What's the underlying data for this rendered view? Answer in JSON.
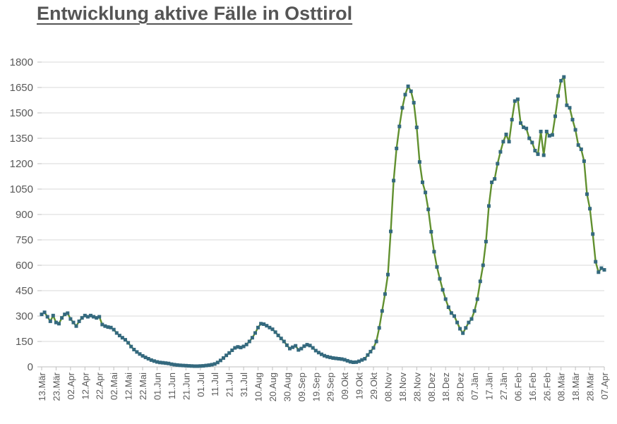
{
  "title": "Entwicklung aktive Fälle in Osttirol",
  "colors": {
    "line": "#61902f",
    "marker": "#34697e",
    "grid": "#d9d9d9",
    "axis": "#bfbfbf",
    "text": "#595959",
    "title_text": "#555555",
    "background": "#ffffff"
  },
  "chart_data": {
    "type": "line",
    "title": "Entwicklung aktive Fälle in Osttirol",
    "legend": "none",
    "grid": "horizontal",
    "marker": "square",
    "ylim": [
      0,
      1800
    ],
    "y_ticks": [
      0,
      150,
      300,
      450,
      600,
      750,
      900,
      1050,
      1200,
      1350,
      1500,
      1650,
      1800
    ],
    "x_tick_labels": [
      "13.Mär",
      "23.Mär",
      "02.Apr",
      "12.Apr",
      "22.Apr",
      "02.Mai",
      "12.Mai",
      "22.Mai",
      "01.Jun",
      "11.Jun",
      "21.Jun",
      "01.Jul",
      "11.Jul",
      "21.Jul",
      "31.Jul",
      "10.Aug",
      "20.Aug",
      "30.Aug",
      "09.Sep",
      "19.Sep",
      "29.Sep",
      "09.Okt",
      "19.Okt",
      "29.Okt",
      "08.Nov",
      "18.Nov",
      "28.Nov",
      "08.Dez",
      "18.Dez",
      "28.Dez",
      "07.Jän",
      "17.Jän",
      "27.Jän",
      "06.Feb",
      "16.Feb",
      "26.Feb",
      "08.Mär",
      "18.Mär",
      "28.Mär",
      "07.Apr"
    ],
    "x_range": "13.Mär bis 07.Apr, Datenpunkte alle 2 Tage",
    "series": [
      {
        "name": "aktive Fälle",
        "values": [
          310,
          322,
          296,
          269,
          303,
          262,
          255,
          289,
          310,
          317,
          283,
          262,
          241,
          269,
          289,
          303,
          296,
          303,
          296,
          289,
          296,
          250,
          241,
          235,
          232,
          220,
          200,
          185,
          172,
          160,
          142,
          120,
          102,
          88,
          76,
          65,
          56,
          48,
          40,
          34,
          29,
          26,
          24,
          22,
          20,
          16,
          13,
          11,
          9,
          8,
          7,
          6,
          5,
          4,
          4,
          5,
          6,
          8,
          10,
          13,
          17,
          26,
          38,
          52,
          68,
          82,
          98,
          112,
          118,
          114,
          121,
          132,
          150,
          172,
          200,
          232,
          255,
          252,
          243,
          232,
          222,
          205,
          186,
          168,
          150,
          128,
          108,
          116,
          124,
          100,
          108,
          122,
          131,
          126,
          112,
          96,
          84,
          74,
          66,
          60,
          56,
          52,
          50,
          48,
          46,
          42,
          36,
          30,
          27,
          28,
          33,
          41,
          48,
          70,
          90,
          112,
          150,
          230,
          330,
          430,
          545,
          800,
          1100,
          1290,
          1420,
          1530,
          1608,
          1657,
          1628,
          1560,
          1414,
          1210,
          1090,
          1030,
          930,
          798,
          680,
          590,
          520,
          455,
          400,
          352,
          318,
          300,
          262,
          225,
          199,
          230,
          262,
          283,
          330,
          400,
          505,
          600,
          740,
          950,
          1090,
          1110,
          1200,
          1270,
          1330,
          1373,
          1330,
          1460,
          1570,
          1580,
          1440,
          1415,
          1408,
          1350,
          1325,
          1277,
          1256,
          1390,
          1250,
          1390,
          1365,
          1370,
          1480,
          1600,
          1690,
          1712,
          1545,
          1530,
          1460,
          1400,
          1310,
          1285,
          1215,
          1020,
          934,
          784,
          621,
          559,
          583,
          573
        ]
      }
    ]
  }
}
